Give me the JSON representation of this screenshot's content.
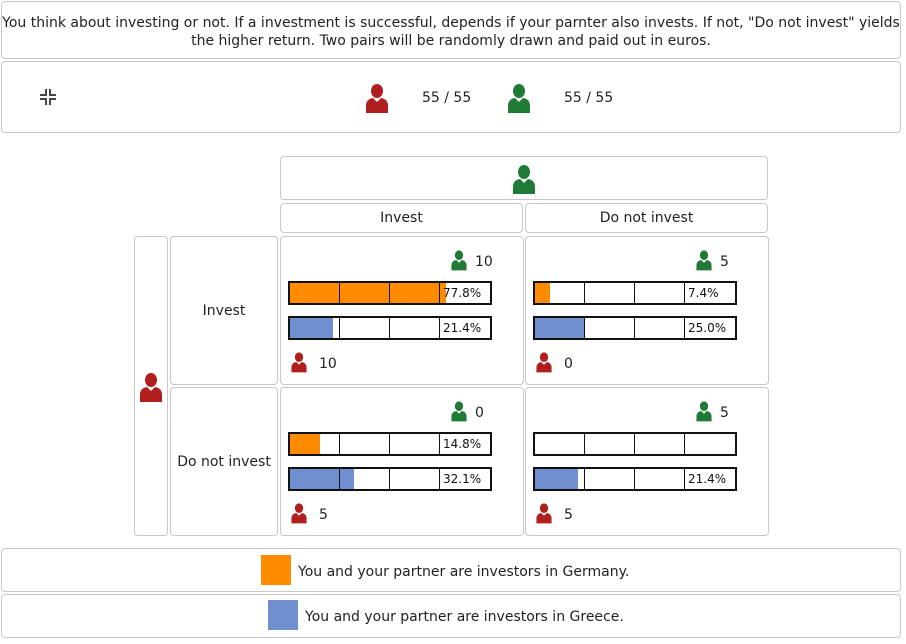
{
  "instructions": "You think about investing or not. If a investment is successful, depends if your parnter also invests. If not, \"Do not invest\" yields the higher return. Two pairs will be randomly drawn and paid out in euros.",
  "colors": {
    "you": "#b01e1e",
    "partner": "#1e7a34",
    "germany": "#ff8c00",
    "greece": "#6f8fcf"
  },
  "status": {
    "collapse_icon": "collapse-arrows-icon",
    "you_count": "55 / 55",
    "partner_count": "55 / 55"
  },
  "matrix": {
    "columns": [
      "Invest",
      "Do not invest"
    ],
    "rows": [
      "Invest",
      "Do not invest"
    ],
    "cells": [
      {
        "partner_payoff": "10",
        "you_payoff": "10",
        "germany_share": 0.778,
        "germany_label": "77.8%",
        "greece_share": 0.214,
        "greece_label": "21.4%"
      },
      {
        "partner_payoff": "5",
        "you_payoff": "0",
        "germany_share": 0.074,
        "germany_label": "7.4%",
        "greece_share": 0.25,
        "greece_label": "25.0%"
      },
      {
        "partner_payoff": "0",
        "you_payoff": "5",
        "germany_share": 0.148,
        "germany_label": "14.8%",
        "greece_share": 0.321,
        "greece_label": "32.1%"
      },
      {
        "partner_payoff": "5",
        "you_payoff": "5",
        "germany_share": 0.0,
        "germany_label": "",
        "greece_share": 0.214,
        "greece_label": "21.4%"
      }
    ]
  },
  "legend": {
    "germany": "You and your partner are investors in Germany.",
    "greece": "You and your partner are investors in Greece."
  }
}
